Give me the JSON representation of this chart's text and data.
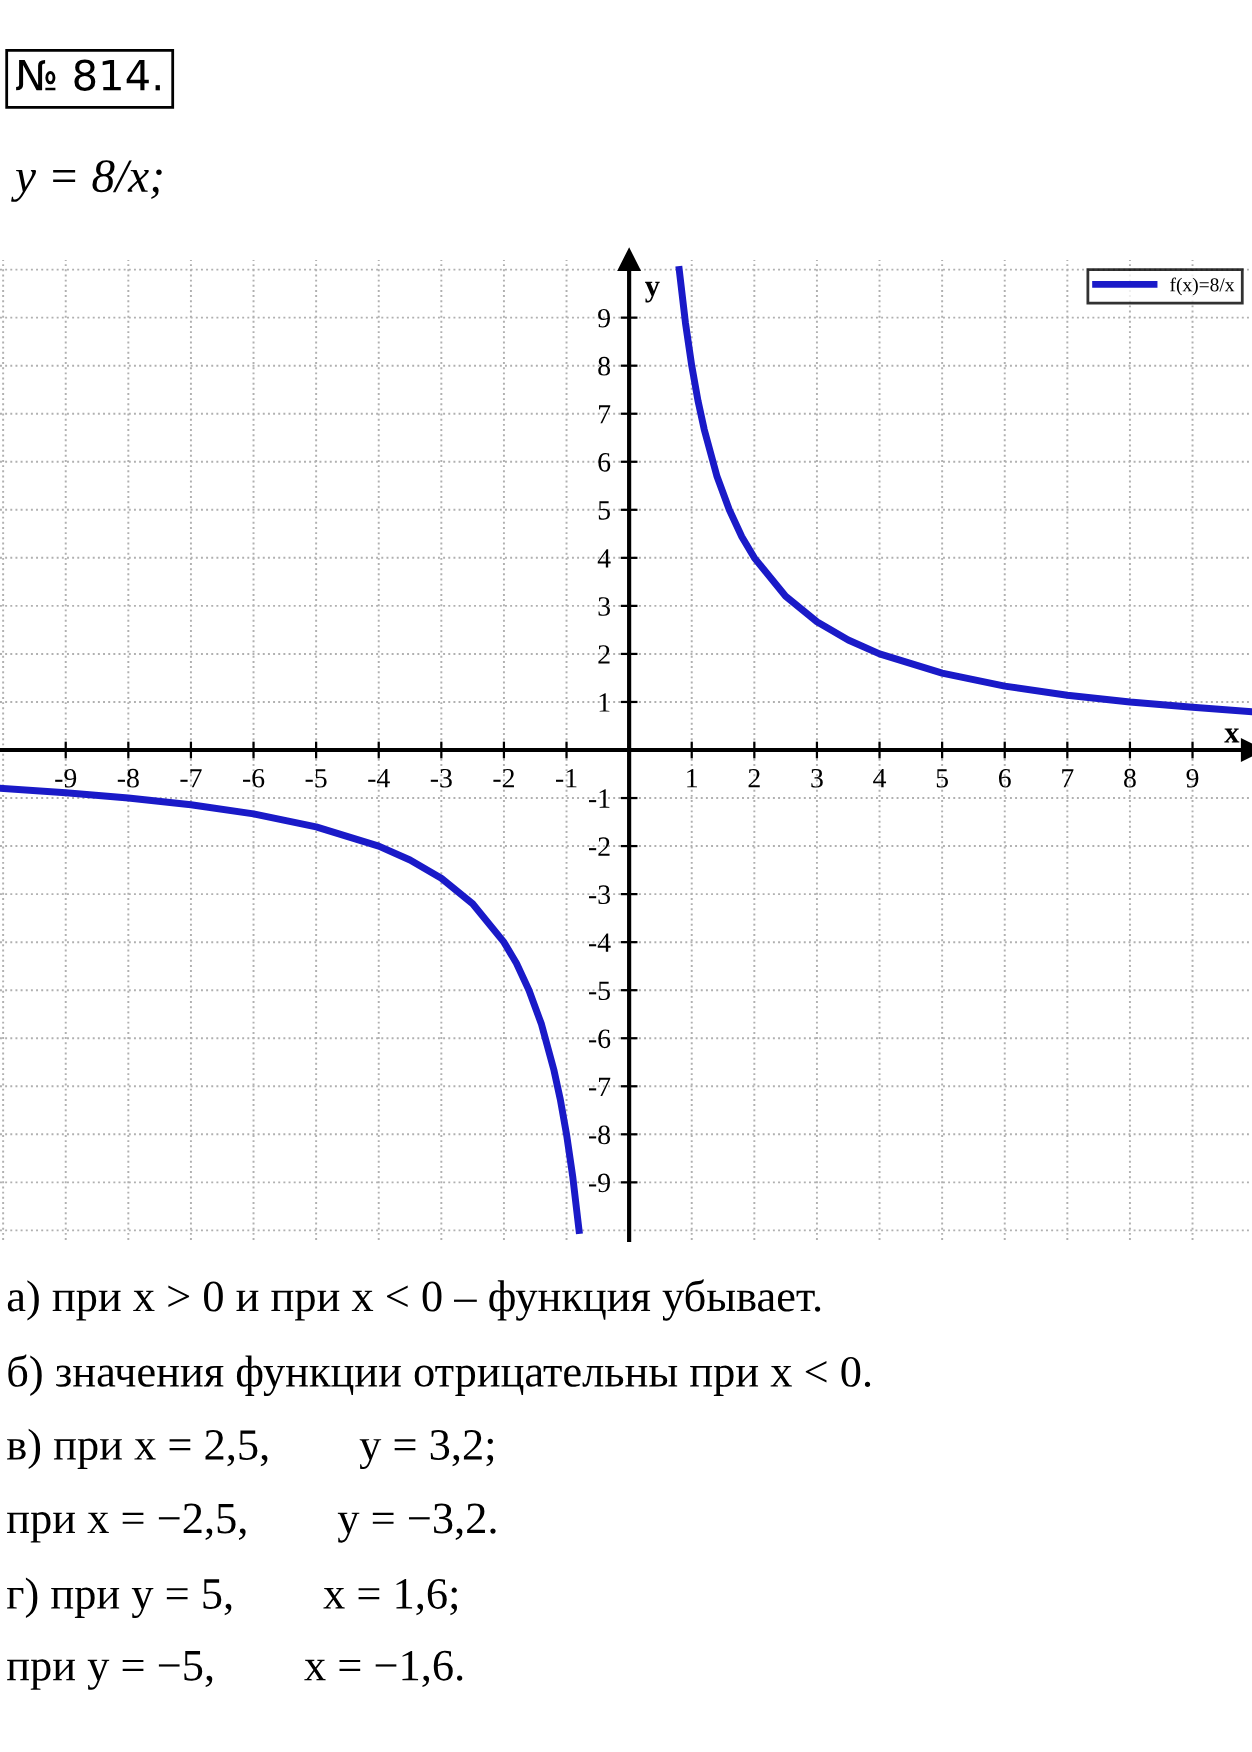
{
  "chart_data": {
    "type": "line",
    "title": "№ 814.",
    "subtitle": "y = 8/x;",
    "xlabel": "x",
    "ylabel": "y",
    "x": [
      -10,
      -9,
      -8,
      -7,
      -6,
      -5,
      -4,
      -3.5,
      -3,
      -2.5,
      -2,
      -1.8,
      -1.6,
      -1.4,
      -1.2,
      -1.1,
      -1,
      -0.9,
      -0.8,
      0,
      0.8,
      0.9,
      1,
      1.1,
      1.2,
      1.4,
      1.6,
      1.8,
      2,
      2.5,
      3,
      3.5,
      4,
      5,
      6,
      7,
      8,
      9,
      9.9
    ],
    "series": [
      {
        "name": "f(x)=8/x",
        "color": "#1a1ac8",
        "values": [
          -0.8,
          -0.89,
          -1,
          -1.14,
          -1.33,
          -1.6,
          -2,
          -2.29,
          -2.67,
          -3.2,
          -4,
          -4.44,
          -5,
          -5.71,
          -6.67,
          -7.27,
          -8,
          -8.89,
          -10,
          null,
          10,
          8.89,
          8,
          7.27,
          6.67,
          5.71,
          5,
          4.44,
          4,
          3.2,
          2.67,
          2.29,
          2,
          1.6,
          1.33,
          1.14,
          1,
          0.89,
          0.8
        ]
      }
    ],
    "xlim": [
      -10.05,
      9.95
    ],
    "ylim": [
      -10.2,
      10.2
    ],
    "xticks": [
      -9,
      -8,
      -7,
      -6,
      -5,
      -4,
      -3,
      -2,
      -1,
      1,
      2,
      3,
      4,
      5,
      6,
      7,
      8,
      9
    ],
    "yticks": [
      -9,
      -8,
      -7,
      -6,
      -5,
      -4,
      -3,
      -2,
      -1,
      1,
      2,
      3,
      4,
      5,
      6,
      7,
      8,
      9
    ],
    "grid": true,
    "legend": "top right",
    "line_style": "solid",
    "marker": "none",
    "annotations": [
      "а) при x > 0 и при x < 0 – функция убывает.",
      "б) значения функции отрицательны при x < 0.",
      "в) при x = 2,5,        y = 3,2;",
      "при x = −2,5,        y = −3,2.",
      "г) при y = 5,        x = 1,6;",
      "при y = −5,        x = −1,6."
    ]
  }
}
